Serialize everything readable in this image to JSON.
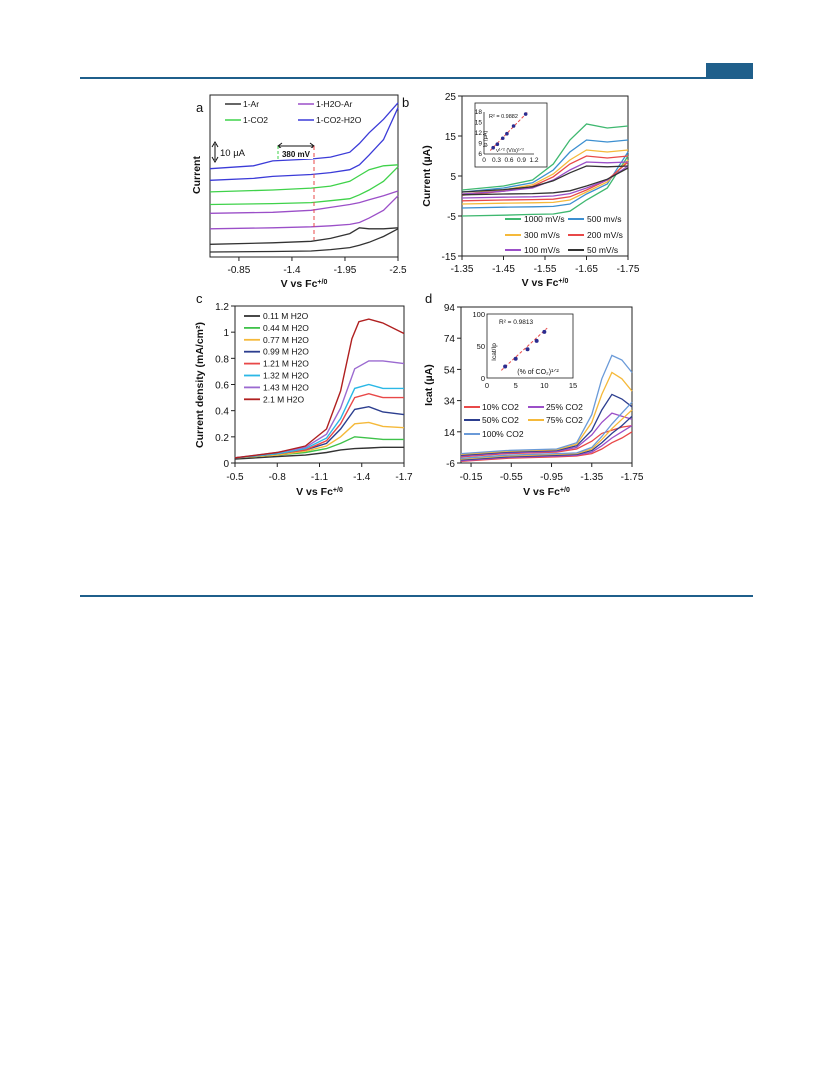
{
  "page": {
    "header_color": "#1f5f8b"
  },
  "chart_data": [
    {
      "panel": "a",
      "type": "line",
      "xlabel": "V vs Fc",
      "xlabel_sup": "+/0",
      "ylabel": "Current",
      "xlim": [
        -0.55,
        -2.5
      ],
      "xticks": [
        -0.85,
        -1.4,
        -1.95,
        -2.5
      ],
      "xtick_labels": [
        "-0.85",
        "-1.4",
        "-1.95",
        "-2.5"
      ],
      "scale_bar": "10 µA",
      "annotation": "380 mV",
      "legend": [
        "1-Ar",
        "1-H2O-Ar",
        "1-CO2",
        "1-CO2-H2O"
      ],
      "colors": {
        "1-Ar": "#333333",
        "1-H2O-Ar": "#9b4fc8",
        "1-CO2": "#3fd24a",
        "1-CO2-H2O": "#3b3bd8"
      },
      "series": [
        {
          "name": "1-Ar",
          "x": [
            -0.55,
            -1.2,
            -1.6,
            -1.8,
            -2.0,
            -2.1,
            -2.2,
            -2.35,
            -2.5
          ],
          "upper": [
            0.8,
            0.95,
            1.1,
            1.4,
            1.9,
            2.5,
            2.4,
            2.4,
            2.5
          ],
          "lower": [
            0.0,
            0.05,
            0.1,
            0.25,
            0.45,
            0.7,
            1.0,
            1.6,
            2.4
          ]
        },
        {
          "name": "1-H2O-Ar",
          "x": [
            -0.55,
            -1.2,
            -1.6,
            -1.8,
            -2.0,
            -2.1,
            -2.2,
            -2.35,
            -2.5
          ],
          "upper": [
            4.0,
            4.1,
            4.3,
            4.6,
            4.9,
            5.1,
            5.4,
            5.8,
            6.3
          ],
          "lower": [
            2.4,
            2.5,
            2.6,
            2.7,
            2.85,
            3.05,
            3.5,
            4.3,
            5.8
          ]
        },
        {
          "name": "1-CO2",
          "x": [
            -0.55,
            -1.2,
            -1.6,
            -1.8,
            -2.0,
            -2.1,
            -2.2,
            -2.35,
            -2.5
          ],
          "upper": [
            6.2,
            6.4,
            6.6,
            6.8,
            7.3,
            7.9,
            8.5,
            8.9,
            9.0
          ],
          "lower": [
            4.9,
            5.0,
            5.1,
            5.3,
            5.5,
            5.9,
            6.4,
            7.3,
            8.8
          ]
        },
        {
          "name": "1-CO2-H2O",
          "x": [
            -0.55,
            -1.0,
            -1.2,
            -1.6,
            -1.8,
            -2.0,
            -2.1,
            -2.2,
            -2.35,
            -2.5
          ],
          "upper": [
            8.6,
            8.9,
            9.4,
            9.6,
            9.8,
            10.3,
            11.2,
            12.3,
            13.7,
            15.4
          ],
          "lower": [
            7.4,
            7.6,
            7.8,
            8.0,
            8.2,
            8.5,
            9.0,
            10.0,
            11.6,
            14.9
          ]
        }
      ]
    },
    {
      "panel": "b",
      "type": "line",
      "xlabel": "V vs Fc",
      "xlabel_sup": "+/0",
      "ylabel": "Current (µA)",
      "xlim": [
        -1.35,
        -1.75
      ],
      "ylim": [
        -15,
        25
      ],
      "xticks": [
        -1.35,
        -1.45,
        -1.55,
        -1.65,
        -1.75
      ],
      "xtick_labels": [
        "-1.35",
        "-1.45",
        "-1.55",
        "-1.65",
        "-1.75"
      ],
      "yticks": [
        -15,
        -5,
        5,
        15,
        25
      ],
      "legend": [
        "1000 mV/s",
        "500 mv/s",
        "300 mV/s",
        "200 mV/s",
        "100 mV/s",
        "50 mV/s"
      ],
      "series": [
        {
          "name": "1000 mV/s",
          "color": "#3fb870",
          "x": [
            -1.35,
            -1.45,
            -1.52,
            -1.57,
            -1.61,
            -1.65,
            -1.7,
            -1.75
          ],
          "upper": [
            1.5,
            2.5,
            4.0,
            8.0,
            14.0,
            18.0,
            17.0,
            17.5
          ],
          "lower": [
            -5.0,
            -4.8,
            -4.6,
            -4.5,
            -3.8,
            -1.0,
            2.0,
            10.0
          ]
        },
        {
          "name": "500 mv/s",
          "color": "#3c8fd0",
          "x": [
            -1.35,
            -1.45,
            -1.52,
            -1.57,
            -1.61,
            -1.65,
            -1.7,
            -1.75
          ],
          "upper": [
            1.0,
            2.0,
            3.3,
            6.5,
            11.0,
            14.0,
            13.5,
            14.0
          ],
          "lower": [
            -3.0,
            -2.8,
            -2.7,
            -2.6,
            -2.0,
            0.5,
            3.0,
            11.0
          ]
        },
        {
          "name": "300 mV/s",
          "color": "#f5b93a",
          "x": [
            -1.35,
            -1.45,
            -1.52,
            -1.57,
            -1.61,
            -1.65,
            -1.7,
            -1.75
          ],
          "upper": [
            0.5,
            1.5,
            2.8,
            5.5,
            9.0,
            11.5,
            11.0,
            11.5
          ],
          "lower": [
            -2.0,
            -1.8,
            -1.7,
            -1.6,
            -1.0,
            1.0,
            3.5,
            9.0
          ]
        },
        {
          "name": "200 mV/s",
          "color": "#e84848",
          "x": [
            -1.35,
            -1.45,
            -1.52,
            -1.57,
            -1.61,
            -1.65,
            -1.7,
            -1.75
          ],
          "upper": [
            0.2,
            1.2,
            2.4,
            4.8,
            8.0,
            10.0,
            9.5,
            10.0
          ],
          "lower": [
            -1.2,
            -1.0,
            -0.9,
            -0.8,
            -0.2,
            1.5,
            4.0,
            8.5
          ]
        },
        {
          "name": "100 mV/s",
          "color": "#9b4fc8",
          "x": [
            -1.35,
            -1.45,
            -1.52,
            -1.57,
            -1.61,
            -1.65,
            -1.7,
            -1.75
          ],
          "upper": [
            0.5,
            1.2,
            2.0,
            4.0,
            6.5,
            8.5,
            8.3,
            8.5
          ],
          "lower": [
            -0.5,
            -0.3,
            -0.2,
            0.0,
            0.6,
            2.0,
            4.0,
            7.5
          ]
        },
        {
          "name": "50 mV/s",
          "color": "#333333",
          "x": [
            -1.35,
            -1.45,
            -1.52,
            -1.57,
            -1.61,
            -1.65,
            -1.7,
            -1.75
          ],
          "upper": [
            1.0,
            1.6,
            2.3,
            3.8,
            5.8,
            7.5,
            7.3,
            7.5
          ],
          "lower": [
            0.3,
            0.5,
            0.6,
            0.8,
            1.3,
            2.5,
            4.2,
            7.0
          ]
        }
      ],
      "inset": {
        "r2": "R² = 0.9882",
        "ylabel": "Ip (µA)",
        "xlabel": "ν¹ᐟ² (V/s)¹ᐟ²",
        "xlim": [
          0,
          1.2
        ],
        "ylim": [
          6,
          18
        ],
        "xticks": [
          0,
          0.3,
          0.6,
          0.9,
          1.2
        ],
        "xtick_labels": [
          "0",
          "0.3",
          "0.6",
          "0.9",
          "1.2"
        ],
        "yticks": [
          6,
          9,
          12,
          15,
          18
        ],
        "points": [
          [
            0.22,
            7.8
          ],
          [
            0.32,
            8.8
          ],
          [
            0.45,
            10.5
          ],
          [
            0.55,
            11.8
          ],
          [
            0.71,
            14.0
          ],
          [
            1.0,
            17.4
          ]
        ],
        "fit": [
          [
            0.15,
            7.0
          ],
          [
            1.05,
            18.0
          ]
        ]
      }
    },
    {
      "panel": "c",
      "type": "line",
      "xlabel": "V vs Fc",
      "xlabel_sup": "+/0",
      "ylabel": "Current density (mA/cm²)",
      "xlim": [
        -0.5,
        -1.7
      ],
      "ylim": [
        0,
        1.2
      ],
      "xticks": [
        -0.5,
        -0.8,
        -1.1,
        -1.4,
        -1.7
      ],
      "xtick_labels": [
        "-0.5",
        "-0.8",
        "-1.1",
        "-1.4",
        "-1.7"
      ],
      "yticks": [
        0,
        0.2,
        0.4,
        0.6,
        0.8,
        1.0,
        1.2
      ],
      "ytick_labels": [
        "0",
        "0.2",
        "0.4",
        "0.6",
        "0.8",
        "1",
        "1.2"
      ],
      "legend": [
        "0.11 M H2O",
        "0.44 M H2O",
        "0.77 M H2O",
        "0.99 M H2O",
        "1.21 M H2O",
        "1.32 M H2O",
        "1.43 M H2O",
        "2.1 M H2O"
      ],
      "series": [
        {
          "name": "0.11 M H2O",
          "color": "#333333",
          "x": [
            -0.5,
            -0.8,
            -1.0,
            -1.15,
            -1.25,
            -1.35,
            -1.45,
            -1.55,
            -1.7
          ],
          "y": [
            0.03,
            0.05,
            0.06,
            0.08,
            0.1,
            0.11,
            0.115,
            0.12,
            0.12
          ]
        },
        {
          "name": "0.44 M H2O",
          "color": "#3fc24a",
          "x": [
            -0.5,
            -0.8,
            -1.0,
            -1.15,
            -1.25,
            -1.35,
            -1.45,
            -1.55,
            -1.7
          ],
          "y": [
            0.04,
            0.06,
            0.08,
            0.11,
            0.15,
            0.2,
            0.19,
            0.18,
            0.18
          ]
        },
        {
          "name": "0.77 M H2O",
          "color": "#f5b93a",
          "x": [
            -0.5,
            -0.8,
            -1.0,
            -1.15,
            -1.25,
            -1.35,
            -1.45,
            -1.55,
            -1.7
          ],
          "y": [
            0.04,
            0.06,
            0.09,
            0.13,
            0.2,
            0.3,
            0.31,
            0.28,
            0.27
          ]
        },
        {
          "name": "0.99 M H2O",
          "color": "#2c3e8f",
          "x": [
            -0.5,
            -0.8,
            -1.0,
            -1.15,
            -1.25,
            -1.35,
            -1.45,
            -1.55,
            -1.7
          ],
          "y": [
            0.04,
            0.07,
            0.1,
            0.15,
            0.26,
            0.41,
            0.43,
            0.39,
            0.37
          ]
        },
        {
          "name": "1.21 M H2O",
          "color": "#e84848",
          "x": [
            -0.5,
            -0.8,
            -1.0,
            -1.15,
            -1.25,
            -1.35,
            -1.45,
            -1.55,
            -1.7
          ],
          "y": [
            0.04,
            0.07,
            0.1,
            0.17,
            0.3,
            0.5,
            0.53,
            0.5,
            0.5
          ]
        },
        {
          "name": "1.32 M H2O",
          "color": "#2bb8e6",
          "x": [
            -0.5,
            -0.8,
            -1.0,
            -1.15,
            -1.25,
            -1.35,
            -1.45,
            -1.55,
            -1.7
          ],
          "y": [
            0.04,
            0.07,
            0.11,
            0.19,
            0.34,
            0.57,
            0.6,
            0.57,
            0.57
          ]
        },
        {
          "name": "1.43 M H2O",
          "color": "#9b6ad0",
          "x": [
            -0.5,
            -0.8,
            -1.0,
            -1.15,
            -1.25,
            -1.35,
            -1.45,
            -1.55,
            -1.7
          ],
          "y": [
            0.04,
            0.08,
            0.12,
            0.22,
            0.42,
            0.72,
            0.78,
            0.78,
            0.76
          ]
        },
        {
          "name": "2.1 M H2O",
          "color": "#b02020",
          "x": [
            -0.5,
            -0.8,
            -1.0,
            -1.15,
            -1.25,
            -1.33,
            -1.38,
            -1.45,
            -1.55,
            -1.7
          ],
          "y": [
            0.04,
            0.08,
            0.13,
            0.26,
            0.55,
            0.95,
            1.08,
            1.1,
            1.07,
            0.99
          ]
        }
      ]
    },
    {
      "panel": "d",
      "type": "line",
      "xlabel": "V vs Fc",
      "xlabel_sup": "+/0",
      "ylabel": "Icat (µA)",
      "xlim": [
        -0.05,
        -1.75
      ],
      "ylim": [
        -6,
        94
      ],
      "xticks": [
        -0.15,
        -0.55,
        -0.95,
        -1.35,
        -1.75
      ],
      "xtick_labels": [
        "-0.15",
        "-0.55",
        "-0.95",
        "-1.35",
        "-1.75"
      ],
      "yticks": [
        -6,
        14,
        34,
        54,
        74,
        94
      ],
      "legend": [
        "10% CO2",
        "25% CO2",
        "50% CO2",
        "75% CO2",
        "100% CO2"
      ],
      "series": [
        {
          "name": "10% CO2",
          "color": "#e84848",
          "x": [
            -0.05,
            -0.5,
            -1.0,
            -1.2,
            -1.35,
            -1.45,
            -1.55,
            -1.65,
            -1.75
          ],
          "upper": [
            -2.0,
            0.0,
            1.0,
            3.0,
            8.0,
            13.0,
            15.0,
            17.0,
            18.0
          ],
          "lower": [
            -5.0,
            -3.0,
            -2.0,
            -1.5,
            0.0,
            3.0,
            7.0,
            10.0,
            14.0
          ]
        },
        {
          "name": "25% CO2",
          "color": "#9b4fc8",
          "x": [
            -0.05,
            -0.5,
            -1.0,
            -1.2,
            -1.35,
            -1.45,
            -1.55,
            -1.65,
            -1.75
          ],
          "upper": [
            -1.5,
            0.5,
            1.5,
            4.0,
            12.0,
            20.0,
            26.0,
            24.0,
            22.0
          ],
          "lower": [
            -4.5,
            -2.5,
            -1.5,
            -1.0,
            1.0,
            5.0,
            10.0,
            14.0,
            18.0
          ]
        },
        {
          "name": "50% CO2",
          "color": "#2c3e8f",
          "x": [
            -0.05,
            -0.5,
            -1.0,
            -1.2,
            -1.35,
            -1.45,
            -1.55,
            -1.65,
            -1.75
          ],
          "upper": [
            -1.0,
            1.0,
            2.0,
            5.0,
            15.0,
            28.0,
            38.0,
            35.0,
            30.0
          ],
          "lower": [
            -4.0,
            -2.0,
            -1.0,
            -0.5,
            2.0,
            7.0,
            13.0,
            18.0,
            24.0
          ]
        },
        {
          "name": "75% CO2",
          "color": "#f5b93a",
          "x": [
            -0.05,
            -0.5,
            -1.0,
            -1.2,
            -1.35,
            -1.45,
            -1.55,
            -1.65,
            -1.75
          ],
          "upper": [
            -0.5,
            1.5,
            2.5,
            6.0,
            20.0,
            38.0,
            52.0,
            48.0,
            40.0
          ],
          "lower": [
            -3.5,
            -1.5,
            -0.5,
            0.0,
            3.0,
            9.0,
            16.0,
            22.0,
            28.0
          ]
        },
        {
          "name": "100% CO2",
          "color": "#6a9ad8",
          "x": [
            -0.05,
            -0.5,
            -1.0,
            -1.2,
            -1.35,
            -1.45,
            -1.55,
            -1.65,
            -1.75
          ],
          "upper": [
            0.0,
            2.0,
            3.0,
            7.0,
            25.0,
            48.0,
            63.0,
            60.0,
            52.0
          ],
          "lower": [
            -3.0,
            -1.0,
            0.0,
            0.5,
            4.0,
            11.0,
            19.0,
            26.0,
            33.0
          ]
        }
      ],
      "inset": {
        "r2": "R² = 0.9813",
        "ylabel": "Icat/Ip",
        "xlabel": "(% of CO₂)¹ᐟ²",
        "xlim": [
          0,
          15
        ],
        "ylim": [
          0,
          100
        ],
        "xticks": [
          0,
          5,
          10,
          15
        ],
        "xtick_labels": [
          "0",
          "5",
          "10",
          "15"
        ],
        "yticks": [
          0,
          50,
          100
        ],
        "points": [
          [
            3.16,
            18
          ],
          [
            5.0,
            30
          ],
          [
            7.07,
            45
          ],
          [
            8.66,
            58
          ],
          [
            10.0,
            72
          ]
        ],
        "fit": [
          [
            2.5,
            12
          ],
          [
            10.5,
            78
          ]
        ]
      }
    }
  ]
}
